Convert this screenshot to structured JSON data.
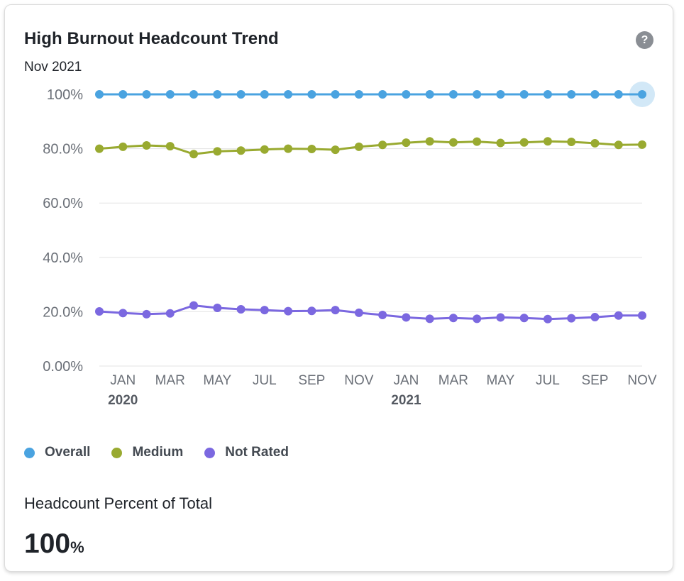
{
  "card": {
    "title": "High Burnout Headcount Trend",
    "subtitle": "Nov 2021",
    "help_glyph": "?"
  },
  "chart_data": {
    "type": "line",
    "title": "High Burnout Headcount Trend",
    "subtitle": "Nov 2021",
    "x": [
      "2019-12",
      "2020-01",
      "2020-02",
      "2020-03",
      "2020-04",
      "2020-05",
      "2020-06",
      "2020-07",
      "2020-08",
      "2020-09",
      "2020-10",
      "2020-11",
      "2020-12",
      "2021-01",
      "2021-02",
      "2021-03",
      "2021-04",
      "2021-05",
      "2021-06",
      "2021-07",
      "2021-08",
      "2021-09",
      "2021-10",
      "2021-11"
    ],
    "x_tick_labels": [
      {
        "x": "2020-01",
        "month": "JAN",
        "year": "2020"
      },
      {
        "x": "2020-03",
        "month": "MAR",
        "year": ""
      },
      {
        "x": "2020-05",
        "month": "MAY",
        "year": ""
      },
      {
        "x": "2020-07",
        "month": "JUL",
        "year": ""
      },
      {
        "x": "2020-09",
        "month": "SEP",
        "year": ""
      },
      {
        "x": "2020-11",
        "month": "NOV",
        "year": ""
      },
      {
        "x": "2021-01",
        "month": "JAN",
        "year": "2021"
      },
      {
        "x": "2021-03",
        "month": "MAR",
        "year": ""
      },
      {
        "x": "2021-05",
        "month": "MAY",
        "year": ""
      },
      {
        "x": "2021-07",
        "month": "JUL",
        "year": ""
      },
      {
        "x": "2021-09",
        "month": "SEP",
        "year": ""
      },
      {
        "x": "2021-11",
        "month": "NOV",
        "year": ""
      }
    ],
    "y_tick_labels": [
      {
        "value": 0,
        "label": "0.00%"
      },
      {
        "value": 20,
        "label": "20.0%"
      },
      {
        "value": 40,
        "label": "40.0%"
      },
      {
        "value": 60,
        "label": "60.0%"
      },
      {
        "value": 80,
        "label": "80.0%"
      },
      {
        "value": 100,
        "label": "100%"
      }
    ],
    "ylim": [
      0,
      100
    ],
    "grid": true,
    "legend_position": "bottom-left",
    "highlighted_point": {
      "series": "Overall",
      "x": "2021-11"
    },
    "series": [
      {
        "name": "Overall",
        "color": "#4aa3e0",
        "values": [
          100,
          100,
          100,
          100,
          100,
          100,
          100,
          100,
          100,
          100,
          100,
          100,
          100,
          100,
          100,
          100,
          100,
          100,
          100,
          100,
          100,
          100,
          100,
          100
        ]
      },
      {
        "name": "Medium",
        "color": "#99aa30",
        "values": [
          80.0,
          80.7,
          81.2,
          80.9,
          78.0,
          79.0,
          79.3,
          79.7,
          80.0,
          79.9,
          79.6,
          80.7,
          81.4,
          82.2,
          82.7,
          82.3,
          82.6,
          82.1,
          82.3,
          82.7,
          82.5,
          82.0,
          81.4,
          81.5
        ]
      },
      {
        "name": "Not Rated",
        "color": "#7b68e0",
        "values": [
          20.1,
          19.5,
          19.1,
          19.4,
          22.3,
          21.4,
          20.9,
          20.6,
          20.2,
          20.3,
          20.6,
          19.6,
          18.8,
          17.9,
          17.4,
          17.7,
          17.4,
          17.9,
          17.7,
          17.3,
          17.6,
          18.0,
          18.6,
          18.6
        ]
      }
    ]
  },
  "legend": [
    {
      "label": "Overall",
      "color": "#4aa3e0"
    },
    {
      "label": "Medium",
      "color": "#99aa30"
    },
    {
      "label": "Not Rated",
      "color": "#7b68e0"
    }
  ],
  "metric": {
    "label": "Headcount Percent of Total",
    "value": "100",
    "unit": "%"
  }
}
